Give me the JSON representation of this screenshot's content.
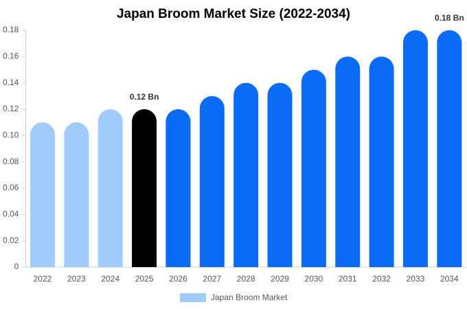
{
  "chart_data": {
    "type": "bar",
    "title": "Japan Broom Market Size (2022-2034)",
    "categories": [
      "2022",
      "2023",
      "2024",
      "2025",
      "2026",
      "2027",
      "2028",
      "2029",
      "2030",
      "2031",
      "2032",
      "2033",
      "2034"
    ],
    "series": [
      {
        "name": "Japan Broom Market",
        "color": "#a0cbfb",
        "values": [
          0.11,
          0.11,
          0.12,
          0.12,
          0.12,
          0.13,
          0.14,
          0.14,
          0.15,
          0.16,
          0.16,
          0.18,
          0.18
        ],
        "bar_colors": [
          "#a0cbfb",
          "#a0cbfb",
          "#a0cbfb",
          "#000000",
          "#0a6cf5",
          "#0a6cf5",
          "#0a6cf5",
          "#0a6cf5",
          "#0a6cf5",
          "#0a6cf5",
          "#0a6cf5",
          "#0a6cf5",
          "#0a6cf5"
        ],
        "value_labels": [
          null,
          null,
          null,
          "0.12 Bn",
          null,
          null,
          null,
          null,
          null,
          null,
          null,
          null,
          "0.18 Bn"
        ]
      }
    ],
    "ylim": [
      0,
      0.18
    ],
    "yticks": [
      0,
      0.02,
      0.04,
      0.06,
      0.08,
      {
        "value": 0.1,
        "label": "0.10"
      },
      0.12,
      0.14,
      0.16,
      0.18
    ],
    "grid": false
  }
}
